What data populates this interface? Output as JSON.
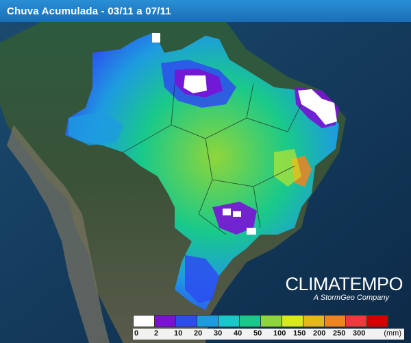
{
  "title": "Chuva Acumulada - 03/11 a 07/11",
  "brand": {
    "name": "CLIMATEMPO",
    "tagline": "A StormGeo Company"
  },
  "legend": {
    "unit": "(mm)",
    "ticks": [
      "0",
      "2",
      "10",
      "20",
      "30",
      "40",
      "50",
      "100",
      "150",
      "200",
      "250",
      "300"
    ],
    "colors": [
      "#ffffff",
      "#7a12d6",
      "#2d4cf0",
      "#1e9be0",
      "#17c8c8",
      "#19c98a",
      "#8fd63a",
      "#d6ea1e",
      "#e6b81e",
      "#f08420",
      "#ee3a3a",
      "#d40000"
    ]
  },
  "map_colors": {
    "ocean": "#13395e",
    "land_north": "#1e4a3a",
    "land_andes": "#6e6a5a",
    "border": "#1a2a2a"
  }
}
